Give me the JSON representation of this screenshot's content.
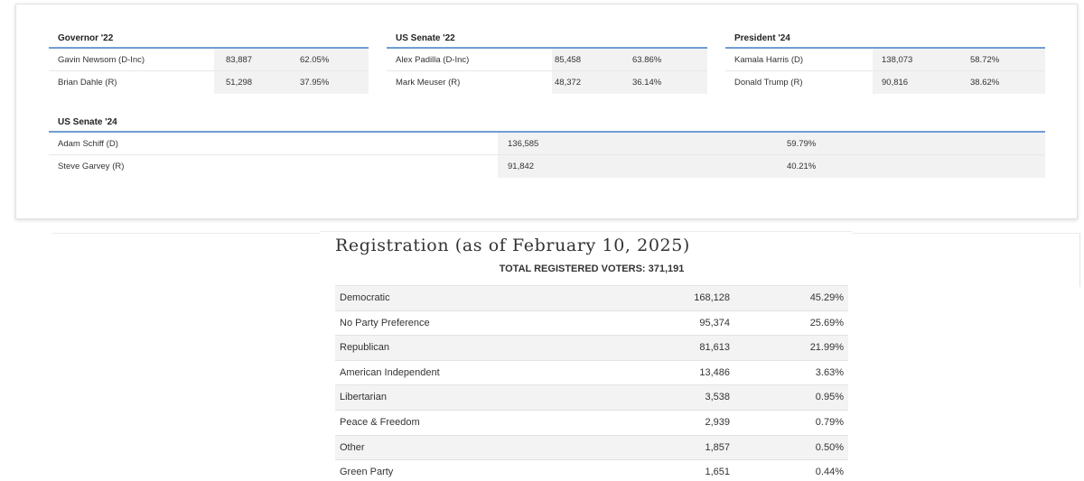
{
  "races": {
    "governor22": {
      "title": "Governor '22",
      "rows": [
        {
          "name": "Gavin Newsom (D-Inc)",
          "votes": "83,887",
          "pct": "62.05%"
        },
        {
          "name": "Brian Dahle (R)",
          "votes": "51,298",
          "pct": "37.95%"
        }
      ]
    },
    "senate22": {
      "title": "US Senate '22",
      "rows": [
        {
          "name": "Alex Padilla (D-Inc)",
          "votes": "85,458",
          "pct": "63.86%"
        },
        {
          "name": "Mark Meuser (R)",
          "votes": "48,372",
          "pct": "36.14%"
        }
      ]
    },
    "president24": {
      "title": "President '24",
      "rows": [
        {
          "name": "Kamala Harris (D)",
          "votes": "138,073",
          "pct": "58.72%"
        },
        {
          "name": "Donald Trump (R)",
          "votes": "90,816",
          "pct": "38.62%"
        }
      ]
    },
    "senate24": {
      "title": "US Senate '24",
      "rows": [
        {
          "name": "Adam Schiff (D)",
          "votes": "136,585",
          "pct": "59.79%"
        },
        {
          "name": "Steve Garvey (R)",
          "votes": "91,842",
          "pct": "40.21%"
        }
      ]
    }
  },
  "registration": {
    "title": "Registration (as of February 10, 2025)",
    "total_label": "TOTAL REGISTERED VOTERS: 371,191",
    "rows": [
      {
        "party": "Democratic",
        "count": "168,128",
        "pct": "45.29%"
      },
      {
        "party": "No Party Preference",
        "count": "95,374",
        "pct": "25.69%"
      },
      {
        "party": "Republican",
        "count": "81,613",
        "pct": "21.99%"
      },
      {
        "party": "American Independent",
        "count": "13,486",
        "pct": "3.63%"
      },
      {
        "party": "Libertarian",
        "count": "3,538",
        "pct": "0.95%"
      },
      {
        "party": "Peace & Freedom",
        "count": "2,939",
        "pct": "0.79%"
      },
      {
        "party": "Other",
        "count": "1,857",
        "pct": "0.50%"
      },
      {
        "party": "Green Party",
        "count": "1,651",
        "pct": "0.44%"
      }
    ]
  },
  "colors": {
    "rule_blue": "#6f9dd3",
    "shade_gray": "#f2f2f2"
  }
}
